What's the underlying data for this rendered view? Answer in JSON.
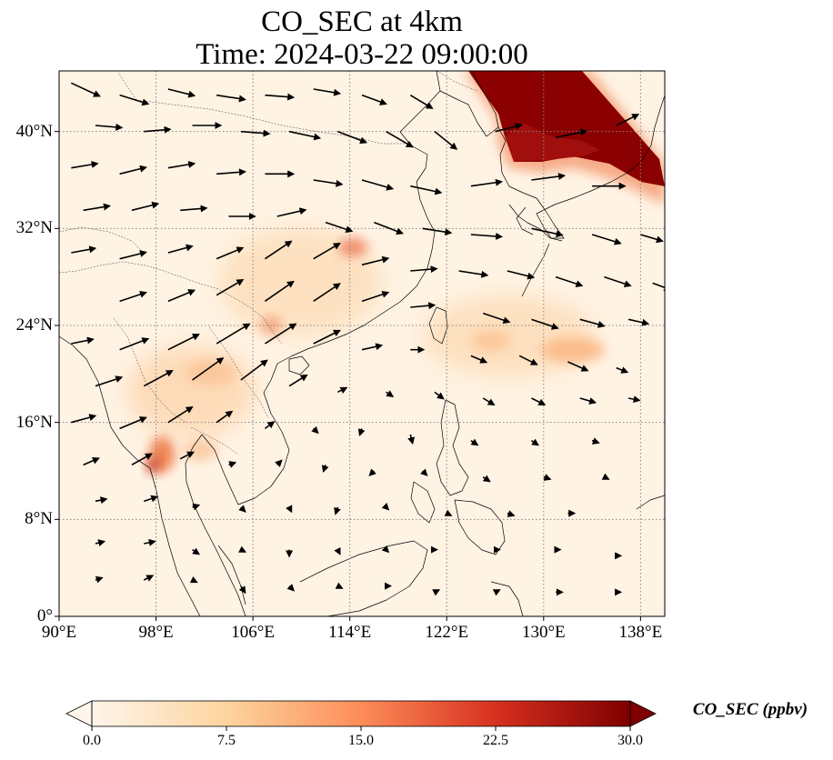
{
  "title": {
    "line1": "CO_SEC at 4km",
    "line2": "Time: 2024-03-22 09:00:00"
  },
  "map": {
    "lon_range": [
      90,
      140
    ],
    "lat_range": [
      0,
      45
    ],
    "lat_ticks": [
      {
        "value": 0,
        "label": "0°"
      },
      {
        "value": 8,
        "label": "8°N"
      },
      {
        "value": 16,
        "label": "16°N"
      },
      {
        "value": 24,
        "label": "24°N"
      },
      {
        "value": 32,
        "label": "32°N"
      },
      {
        "value": 40,
        "label": "40°N"
      }
    ],
    "lon_ticks": [
      {
        "value": 90,
        "label": "90°E"
      },
      {
        "value": 98,
        "label": "98°E"
      },
      {
        "value": 106,
        "label": "106°E"
      },
      {
        "value": 114,
        "label": "114°E"
      },
      {
        "value": 122,
        "label": "122°E"
      },
      {
        "value": 130,
        "label": "130°E"
      },
      {
        "value": 138,
        "label": "138°E"
      }
    ],
    "grid": true,
    "field": {
      "variable": "CO_SEC",
      "high_regions": [
        {
          "name": "northeast-plume",
          "lon": 131,
          "lat": 40.5,
          "value": 30
        },
        {
          "name": "korea-plume",
          "lon": 128.5,
          "lat": 38,
          "value": 28
        },
        {
          "name": "japan-sea-plume",
          "lon": 135,
          "lat": 38.5,
          "value": 24
        },
        {
          "name": "central-china",
          "lon": 114.5,
          "lat": 30.5,
          "value": 14
        },
        {
          "name": "myanmar-thailand",
          "lon": 98,
          "lat": 13,
          "value": 16
        },
        {
          "name": "laos",
          "lon": 103,
          "lat": 20,
          "value": 9
        },
        {
          "name": "vietnam-north",
          "lon": 107,
          "lat": 24.5,
          "value": 8
        },
        {
          "name": "east-ocean",
          "lon": 132,
          "lat": 22,
          "value": 8
        },
        {
          "name": "luzon-strait",
          "lon": 125,
          "lat": 23,
          "value": 6
        }
      ]
    },
    "wind_vectors": [
      [
        91,
        44,
        2.6,
        -1.2
      ],
      [
        95,
        43,
        2.6,
        -0.8
      ],
      [
        99,
        43.5,
        2.4,
        -0.6
      ],
      [
        103,
        43,
        2.6,
        -0.4
      ],
      [
        107,
        43,
        2.6,
        -0.2
      ],
      [
        111,
        43.5,
        2.4,
        -0.4
      ],
      [
        115,
        43,
        2.2,
        -0.8
      ],
      [
        119,
        43,
        2,
        -1.2
      ],
      [
        93,
        40.5,
        2.4,
        -0.2
      ],
      [
        97,
        40,
        2.4,
        0.2
      ],
      [
        101,
        40.5,
        2.6,
        0
      ],
      [
        105,
        40,
        2.6,
        -0.2
      ],
      [
        109,
        40,
        2.8,
        -0.6
      ],
      [
        113,
        40,
        2.6,
        -1
      ],
      [
        117,
        40,
        2.4,
        -1.4
      ],
      [
        121,
        40,
        2,
        -1.6
      ],
      [
        126,
        40,
        2.4,
        0.6
      ],
      [
        131,
        39.5,
        2.8,
        0.6
      ],
      [
        136,
        40.5,
        2,
        1
      ],
      [
        91,
        37,
        2.4,
        0.4
      ],
      [
        95,
        36.5,
        2.4,
        0.6
      ],
      [
        99,
        37,
        2.4,
        0.4
      ],
      [
        103,
        36.5,
        2.6,
        0.2
      ],
      [
        107,
        36.5,
        2.6,
        0
      ],
      [
        111,
        36,
        2.6,
        -0.4
      ],
      [
        115,
        36,
        2.8,
        -0.8
      ],
      [
        119,
        35.5,
        2.8,
        -0.6
      ],
      [
        124,
        35.5,
        2.8,
        0.4
      ],
      [
        129,
        36,
        3,
        0.4
      ],
      [
        134,
        35.5,
        3,
        0
      ],
      [
        92,
        33.5,
        2.4,
        0.4
      ],
      [
        96,
        33.5,
        2.4,
        0.6
      ],
      [
        100,
        33.5,
        2.4,
        0.2
      ],
      [
        104,
        33,
        2.4,
        0
      ],
      [
        108,
        33,
        2.6,
        0.6
      ],
      [
        112,
        32.5,
        2.4,
        -0.8
      ],
      [
        116,
        32.5,
        2.6,
        -1
      ],
      [
        120,
        32,
        2.6,
        -0.4
      ],
      [
        124,
        31.5,
        2.8,
        -0.2
      ],
      [
        129,
        32,
        2.8,
        -0.6
      ],
      [
        134,
        31.5,
        2.6,
        -0.8
      ],
      [
        138,
        31.5,
        2,
        -0.6
      ],
      [
        91,
        30,
        2.2,
        0.4
      ],
      [
        95,
        29.5,
        2.4,
        0.6
      ],
      [
        99,
        30,
        2.2,
        0.6
      ],
      [
        103,
        29.5,
        2.4,
        1
      ],
      [
        107,
        29.5,
        2.4,
        1.6
      ],
      [
        111,
        29.5,
        2.4,
        1.4
      ],
      [
        115,
        29,
        2.4,
        0.6
      ],
      [
        119,
        28.5,
        2.4,
        0.2
      ],
      [
        123,
        28.5,
        2.6,
        -0.4
      ],
      [
        127,
        28.5,
        2.4,
        -0.6
      ],
      [
        131,
        28,
        2.4,
        -0.8
      ],
      [
        135,
        28,
        2.4,
        -0.8
      ],
      [
        139,
        27.5,
        1.6,
        -0.6
      ],
      [
        95,
        26,
        2.4,
        0.8
      ],
      [
        99,
        26,
        2.4,
        1
      ],
      [
        103,
        26.5,
        2.4,
        1.4
      ],
      [
        107,
        26,
        2.6,
        1.8
      ],
      [
        111,
        26,
        2.4,
        1.6
      ],
      [
        115,
        26,
        2.4,
        0.8
      ],
      [
        119,
        25.5,
        2.2,
        0.2
      ],
      [
        125,
        25,
        2.4,
        -0.8
      ],
      [
        129,
        24.5,
        2.4,
        -0.8
      ],
      [
        133,
        24.5,
        2.2,
        -0.6
      ],
      [
        137,
        24.5,
        1.8,
        -0.4
      ],
      [
        91,
        22.5,
        2,
        0.4
      ],
      [
        95,
        22,
        2.6,
        1
      ],
      [
        99,
        22,
        2.8,
        1.4
      ],
      [
        103,
        22.5,
        3,
        1.8
      ],
      [
        107,
        22.5,
        2.8,
        1.8
      ],
      [
        111,
        22.5,
        2.4,
        1.2
      ],
      [
        115,
        22,
        1.8,
        0.4
      ],
      [
        119,
        22,
        1.2,
        0
      ],
      [
        124,
        21.5,
        1.4,
        -0.6
      ],
      [
        128,
        21.5,
        1.6,
        -0.8
      ],
      [
        132,
        21,
        1.8,
        -0.8
      ],
      [
        136,
        20.5,
        1,
        -0.4
      ],
      [
        93,
        19,
        2.4,
        0.8
      ],
      [
        97,
        19,
        2.6,
        1.4
      ],
      [
        101,
        19.5,
        2.8,
        2
      ],
      [
        105,
        19.5,
        2.4,
        1.8
      ],
      [
        109,
        19,
        1.6,
        1
      ],
      [
        113,
        18.5,
        0.8,
        0.4
      ],
      [
        117,
        18.5,
        0.6,
        -0.4
      ],
      [
        121,
        18.5,
        0.8,
        -0.6
      ],
      [
        125,
        18,
        1,
        -0.6
      ],
      [
        129,
        18,
        1.2,
        -0.6
      ],
      [
        133,
        18,
        1.4,
        -0.4
      ],
      [
        137,
        18,
        1,
        -0.2
      ],
      [
        91,
        16,
        2.2,
        0.6
      ],
      [
        95,
        15.5,
        2.4,
        1
      ],
      [
        99,
        16,
        2.2,
        1.4
      ],
      [
        103,
        16,
        1.4,
        1
      ],
      [
        107,
        15.5,
        0.8,
        0.6
      ],
      [
        111,
        15.5,
        0.4,
        -0.4
      ],
      [
        115,
        15.5,
        -0.2,
        -0.6
      ],
      [
        119,
        15,
        0.2,
        -0.8
      ],
      [
        124,
        14.5,
        0.6,
        -0.4
      ],
      [
        129,
        14.5,
        0.6,
        -0.4
      ],
      [
        134,
        14.5,
        0.6,
        -0.2
      ],
      [
        92,
        12.5,
        1.4,
        0.6
      ],
      [
        96,
        12.5,
        1.8,
        1
      ],
      [
        100,
        13,
        1.2,
        0.6
      ],
      [
        104,
        12.5,
        0.6,
        0.2
      ],
      [
        108,
        12.5,
        0.4,
        0.4
      ],
      [
        112,
        12.5,
        -0.2,
        -0.6
      ],
      [
        116,
        12,
        -0.4,
        -0.4
      ],
      [
        120,
        12,
        0.4,
        -0.4
      ],
      [
        125,
        11.5,
        0.6,
        -0.4
      ],
      [
        130,
        11.5,
        0.6,
        -0.2
      ],
      [
        135,
        11.5,
        0.4,
        -0.2
      ],
      [
        93,
        9.5,
        1,
        0.2
      ],
      [
        97,
        9.5,
        1.2,
        0.4
      ],
      [
        101,
        9,
        0.6,
        0.2
      ],
      [
        105,
        9,
        0.4,
        -0.4
      ],
      [
        109,
        9,
        0.2,
        -0.4
      ],
      [
        113,
        9,
        -0.2,
        -0.6
      ],
      [
        117,
        9,
        0.2,
        -0.2
      ],
      [
        122,
        8.5,
        0.4,
        -0.2
      ],
      [
        127,
        8.5,
        0.6,
        -0.2
      ],
      [
        132,
        8.5,
        0.6,
        0
      ],
      [
        93,
        6,
        0.8,
        0.2
      ],
      [
        97,
        6,
        1,
        0.2
      ],
      [
        101,
        5.5,
        0.6,
        -0.4
      ],
      [
        105,
        5.5,
        0.4,
        -0.2
      ],
      [
        109,
        5.5,
        0,
        -0.6
      ],
      [
        113,
        5.5,
        0.2,
        -0.4
      ],
      [
        117,
        5.5,
        0.2,
        -0.2
      ],
      [
        121,
        5.5,
        0.2,
        0
      ],
      [
        126,
        5.5,
        0.4,
        0
      ],
      [
        131,
        5.5,
        0.4,
        0
      ],
      [
        136,
        5,
        0.4,
        0
      ],
      [
        93,
        3,
        0.6,
        0.2
      ],
      [
        97,
        3,
        0.8,
        0.4
      ],
      [
        101,
        3,
        0.4,
        -0.2
      ],
      [
        105,
        2.5,
        0.4,
        -0.6
      ],
      [
        109,
        2.5,
        0.4,
        -0.4
      ],
      [
        113,
        2.5,
        0.4,
        -0.2
      ],
      [
        117,
        2.5,
        0.4,
        0
      ],
      [
        121,
        2,
        0.4,
        0.2
      ],
      [
        126,
        2,
        0.4,
        0.2
      ],
      [
        131,
        2,
        0.6,
        0
      ],
      [
        136,
        2,
        0.4,
        0
      ]
    ]
  },
  "colorbar": {
    "label": "CO_SEC (ppbv)",
    "min": 0,
    "max": 30,
    "extend": "both",
    "ticks": [
      {
        "value": 0,
        "label": "0.0"
      },
      {
        "value": 7.5,
        "label": "7.5"
      },
      {
        "value": 15,
        "label": "15.0"
      },
      {
        "value": 22.5,
        "label": "22.5"
      },
      {
        "value": 30,
        "label": "30.0"
      }
    ],
    "colors": [
      "#fff5eb",
      "#fdd49e",
      "#fc8d59",
      "#d7301f",
      "#7f0000"
    ]
  }
}
